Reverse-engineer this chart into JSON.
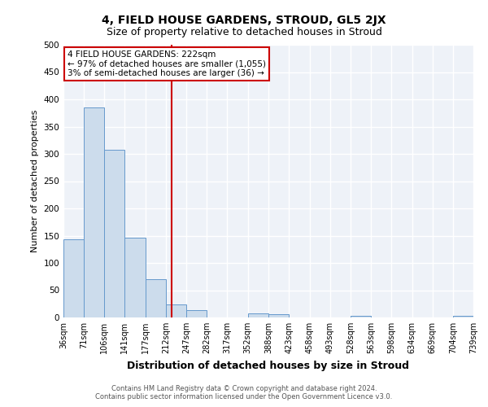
{
  "title": "4, FIELD HOUSE GARDENS, STROUD, GL5 2JX",
  "subtitle": "Size of property relative to detached houses in Stroud",
  "xlabel": "Distribution of detached houses by size in Stroud",
  "ylabel": "Number of detached properties",
  "bar_color": "#ccdcec",
  "bar_edge_color": "#6699cc",
  "background_color": "#eef2f8",
  "grid_color": "#ffffff",
  "bin_left": [
    36,
    71,
    106,
    141,
    177,
    212,
    247,
    282,
    317,
    352,
    388,
    423,
    458,
    493,
    528,
    563,
    598,
    634,
    669,
    704
  ],
  "bin_right": [
    71,
    106,
    141,
    177,
    212,
    247,
    282,
    317,
    352,
    388,
    423,
    458,
    493,
    528,
    563,
    598,
    634,
    669,
    704,
    739
  ],
  "bin_labels": [
    "36sqm",
    "71sqm",
    "106sqm",
    "141sqm",
    "177sqm",
    "212sqm",
    "247sqm",
    "282sqm",
    "317sqm",
    "352sqm",
    "388sqm",
    "423sqm",
    "458sqm",
    "493sqm",
    "528sqm",
    "563sqm",
    "598sqm",
    "634sqm",
    "669sqm",
    "704sqm",
    "739sqm"
  ],
  "bar_heights": [
    143,
    385,
    308,
    147,
    70,
    24,
    14,
    0,
    0,
    8,
    6,
    0,
    0,
    0,
    3,
    0,
    0,
    0,
    0,
    3
  ],
  "property_size": 222,
  "vline_color": "#cc0000",
  "ylim": [
    0,
    500
  ],
  "yticks": [
    0,
    50,
    100,
    150,
    200,
    250,
    300,
    350,
    400,
    450,
    500
  ],
  "annotation_title": "4 FIELD HOUSE GARDENS: 222sqm",
  "annotation_line1": "← 97% of detached houses are smaller (1,055)",
  "annotation_line2": "3% of semi-detached houses are larger (36) →",
  "footnote1": "Contains HM Land Registry data © Crown copyright and database right 2024.",
  "footnote2": "Contains public sector information licensed under the Open Government Licence v3.0.",
  "title_fontsize": 10,
  "subtitle_fontsize": 9
}
